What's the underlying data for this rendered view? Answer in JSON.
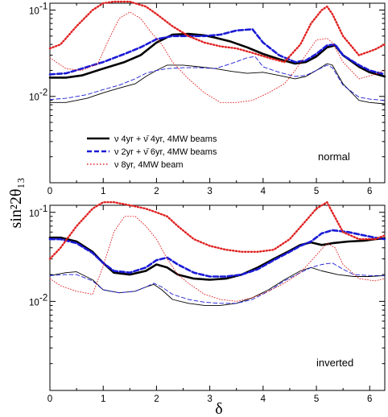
{
  "figure": {
    "ylabel": "sin²2θ₁₃",
    "xlabel": "δ"
  },
  "legend": {
    "entries": [
      {
        "label": "ν 4yr + ν̄ 4yr, 4MW beams"
      },
      {
        "label": "ν 2yr + ν̄ 6yr, 4MW beams"
      },
      {
        "label": "ν 8yr, 4MW beam"
      }
    ]
  },
  "styles": {
    "A": {
      "color": "#000000",
      "dash": "none"
    },
    "B": {
      "color": "#1a1ad6",
      "dash": "dashed"
    },
    "C": {
      "color": "#e02020",
      "dash": "dotted"
    }
  },
  "chart_data": [
    {
      "type": "line",
      "annotation": "normal",
      "xlim": [
        0,
        6.2832
      ],
      "ylim": [
        0.001,
        0.12
      ],
      "yscale": "log",
      "x_ticks": [
        0,
        1,
        2,
        3,
        4,
        5,
        6
      ],
      "y_tick_labels": [
        {
          "base": "10",
          "exp": "-1",
          "value": 0.1
        },
        {
          "base": "10",
          "exp": "-2",
          "value": 0.01
        }
      ],
      "series": [
        {
          "style": "A",
          "weight": "thick",
          "x": [
            0,
            0.3,
            0.6,
            1.0,
            1.4,
            1.7,
            2.0,
            2.3,
            2.6,
            2.9,
            3.1,
            3.4,
            3.7,
            4.0,
            4.3,
            4.6,
            4.8,
            5.0,
            5.2,
            5.35,
            5.5,
            5.8,
            6.0,
            6.28
          ],
          "y": [
            0.0165,
            0.0165,
            0.0175,
            0.021,
            0.025,
            0.03,
            0.042,
            0.052,
            0.053,
            0.051,
            0.048,
            0.043,
            0.037,
            0.031,
            0.027,
            0.024,
            0.025,
            0.029,
            0.037,
            0.039,
            0.03,
            0.022,
            0.019,
            0.017
          ]
        },
        {
          "style": "B",
          "weight": "thick",
          "x": [
            0,
            0.3,
            0.6,
            1.0,
            1.4,
            1.7,
            2.0,
            2.3,
            2.6,
            2.9,
            3.2,
            3.5,
            3.8,
            4.0,
            4.3,
            4.6,
            4.8,
            5.0,
            5.2,
            5.35,
            5.5,
            5.8,
            6.0,
            6.28
          ],
          "y": [
            0.018,
            0.0185,
            0.021,
            0.025,
            0.031,
            0.037,
            0.046,
            0.05,
            0.05,
            0.05,
            0.052,
            0.058,
            0.06,
            0.042,
            0.03,
            0.025,
            0.026,
            0.031,
            0.039,
            0.04,
            0.03,
            0.023,
            0.02,
            0.018
          ]
        },
        {
          "style": "C",
          "weight": "thick",
          "x": [
            0,
            0.2,
            0.5,
            0.8,
            1.0,
            1.2,
            1.5,
            1.8,
            2.0,
            2.3,
            2.6,
            2.9,
            3.2,
            3.5,
            3.8,
            4.1,
            4.4,
            4.7,
            4.9,
            5.1,
            5.2,
            5.3,
            5.5,
            5.8,
            6.1,
            6.28
          ],
          "y": [
            0.036,
            0.04,
            0.065,
            0.1,
            0.12,
            0.125,
            0.125,
            0.11,
            0.09,
            0.065,
            0.05,
            0.042,
            0.038,
            0.036,
            0.032,
            0.028,
            0.025,
            0.04,
            0.07,
            0.1,
            0.11,
            0.09,
            0.05,
            0.03,
            0.035,
            0.04
          ]
        },
        {
          "style": "A",
          "weight": "thin",
          "x": [
            0,
            0.3,
            0.7,
            1.0,
            1.3,
            1.6,
            1.8,
            2.0,
            2.2,
            2.5,
            2.8,
            3.1,
            3.4,
            3.7,
            4.0,
            4.3,
            4.6,
            4.8,
            5.0,
            5.2,
            5.3,
            5.5,
            5.8,
            6.0,
            6.28
          ],
          "y": [
            0.0085,
            0.0085,
            0.0095,
            0.011,
            0.0125,
            0.014,
            0.017,
            0.02,
            0.023,
            0.023,
            0.022,
            0.021,
            0.0195,
            0.0185,
            0.019,
            0.0175,
            0.016,
            0.017,
            0.02,
            0.024,
            0.023,
            0.014,
            0.009,
            0.0085,
            0.0082
          ]
        },
        {
          "style": "B",
          "weight": "thin",
          "x": [
            0,
            0.3,
            0.7,
            1.0,
            1.3,
            1.6,
            1.8,
            2.0,
            2.2,
            2.5,
            2.8,
            3.1,
            3.4,
            3.7,
            3.85,
            4.0,
            4.3,
            4.6,
            4.8,
            5.0,
            5.2,
            5.3,
            5.5,
            5.8,
            6.0,
            6.28
          ],
          "y": [
            0.0092,
            0.0095,
            0.0105,
            0.012,
            0.0135,
            0.016,
            0.0185,
            0.02,
            0.021,
            0.0215,
            0.0215,
            0.021,
            0.024,
            0.028,
            0.029,
            0.022,
            0.019,
            0.017,
            0.0175,
            0.02,
            0.023,
            0.0215,
            0.0135,
            0.0098,
            0.0093,
            0.009
          ]
        },
        {
          "style": "C",
          "weight": "thin",
          "x": [
            0,
            0.3,
            0.6,
            0.9,
            1.1,
            1.3,
            1.5,
            1.7,
            1.9,
            2.1,
            2.3,
            2.6,
            2.9,
            3.2,
            3.5,
            3.8,
            4.1,
            4.4,
            4.6,
            4.8,
            5.0,
            5.2,
            5.3,
            5.5,
            5.8,
            6.1,
            6.28
          ],
          "y": [
            0.028,
            0.021,
            0.02,
            0.024,
            0.045,
            0.08,
            0.095,
            0.08,
            0.055,
            0.04,
            0.025,
            0.016,
            0.011,
            0.0085,
            0.0085,
            0.009,
            0.011,
            0.014,
            0.02,
            0.03,
            0.045,
            0.047,
            0.042,
            0.025,
            0.016,
            0.018,
            0.02
          ]
        }
      ]
    },
    {
      "type": "line",
      "annotation": "inverted",
      "xlim": [
        0,
        6.2832
      ],
      "ylim": [
        0.001,
        0.12
      ],
      "yscale": "log",
      "x_ticks": [
        0,
        1,
        2,
        3,
        4,
        5,
        6
      ],
      "y_tick_labels": [
        {
          "base": "10",
          "exp": "-1",
          "value": 0.1
        },
        {
          "base": "10",
          "exp": "-2",
          "value": 0.01
        }
      ],
      "series": [
        {
          "style": "A",
          "weight": "thick",
          "x": [
            0,
            0.2,
            0.5,
            0.8,
            1.0,
            1.2,
            1.5,
            1.8,
            2.0,
            2.2,
            2.4,
            2.7,
            3.0,
            3.3,
            3.6,
            3.9,
            4.2,
            4.5,
            4.7,
            4.9,
            5.1,
            5.3,
            5.6,
            5.9,
            6.1,
            6.28
          ],
          "y": [
            0.052,
            0.052,
            0.047,
            0.036,
            0.027,
            0.021,
            0.02,
            0.022,
            0.026,
            0.024,
            0.02,
            0.018,
            0.0175,
            0.018,
            0.02,
            0.024,
            0.03,
            0.037,
            0.043,
            0.046,
            0.043,
            0.045,
            0.047,
            0.048,
            0.05,
            0.051
          ]
        },
        {
          "style": "B",
          "weight": "thick",
          "x": [
            0,
            0.2,
            0.5,
            0.8,
            1.0,
            1.2,
            1.5,
            1.8,
            2.0,
            2.2,
            2.4,
            2.7,
            3.0,
            3.3,
            3.6,
            3.9,
            4.2,
            4.5,
            4.7,
            4.9,
            5.1,
            5.3,
            5.6,
            5.9,
            6.1,
            6.28
          ],
          "y": [
            0.05,
            0.05,
            0.045,
            0.035,
            0.027,
            0.022,
            0.021,
            0.024,
            0.029,
            0.031,
            0.026,
            0.021,
            0.019,
            0.019,
            0.02,
            0.023,
            0.029,
            0.036,
            0.042,
            0.047,
            0.058,
            0.063,
            0.06,
            0.055,
            0.052,
            0.05
          ]
        },
        {
          "style": "C",
          "weight": "thick",
          "x": [
            0,
            0.2,
            0.5,
            0.8,
            1.0,
            1.2,
            1.5,
            1.8,
            2.0,
            2.2,
            2.4,
            2.7,
            3.0,
            3.3,
            3.6,
            3.9,
            4.2,
            4.5,
            4.8,
            5.0,
            5.2,
            5.3,
            5.5,
            5.8,
            6.1,
            6.28
          ],
          "y": [
            0.03,
            0.04,
            0.07,
            0.11,
            0.13,
            0.13,
            0.12,
            0.11,
            0.1,
            0.09,
            0.07,
            0.05,
            0.042,
            0.038,
            0.036,
            0.036,
            0.038,
            0.05,
            0.08,
            0.11,
            0.13,
            0.1,
            0.06,
            0.05,
            0.05,
            0.055
          ]
        },
        {
          "style": "A",
          "weight": "thin",
          "x": [
            0,
            0.3,
            0.5,
            0.8,
            1.0,
            1.3,
            1.6,
            1.8,
            1.95,
            2.1,
            2.3,
            2.6,
            2.9,
            3.2,
            3.5,
            3.8,
            4.1,
            4.4,
            4.7,
            4.9,
            5.1,
            5.4,
            5.7,
            6.0,
            6.28
          ],
          "y": [
            0.0195,
            0.021,
            0.0215,
            0.0175,
            0.0135,
            0.0125,
            0.013,
            0.0145,
            0.0155,
            0.0135,
            0.0105,
            0.0095,
            0.009,
            0.009,
            0.0095,
            0.011,
            0.0135,
            0.0175,
            0.022,
            0.024,
            0.022,
            0.02,
            0.019,
            0.019,
            0.0195
          ]
        },
        {
          "style": "B",
          "weight": "thin",
          "x": [
            0,
            0.3,
            0.5,
            0.8,
            1.0,
            1.3,
            1.6,
            1.8,
            1.95,
            2.1,
            2.3,
            2.6,
            2.9,
            3.2,
            3.5,
            3.8,
            4.1,
            4.4,
            4.7,
            4.9,
            5.1,
            5.3,
            5.5,
            5.7,
            6.0,
            6.28
          ],
          "y": [
            0.0195,
            0.02,
            0.02,
            0.017,
            0.0135,
            0.0125,
            0.013,
            0.0145,
            0.016,
            0.0145,
            0.012,
            0.0105,
            0.0098,
            0.0095,
            0.0095,
            0.0105,
            0.013,
            0.017,
            0.021,
            0.024,
            0.026,
            0.027,
            0.023,
            0.02,
            0.0195,
            0.0195
          ]
        },
        {
          "style": "C",
          "weight": "thin",
          "x": [
            0,
            0.2,
            0.5,
            0.8,
            1.0,
            1.2,
            1.4,
            1.6,
            1.8,
            2.0,
            2.2,
            2.4,
            2.6,
            2.9,
            3.2,
            3.5,
            3.8,
            4.1,
            4.4,
            4.7,
            5.0,
            5.2,
            5.35,
            5.5,
            5.8,
            6.1,
            6.28
          ],
          "y": [
            0.018,
            0.015,
            0.013,
            0.012,
            0.025,
            0.06,
            0.09,
            0.09,
            0.07,
            0.05,
            0.03,
            0.02,
            0.016,
            0.012,
            0.0105,
            0.01,
            0.011,
            0.013,
            0.016,
            0.021,
            0.033,
            0.045,
            0.04,
            0.026,
            0.018,
            0.017,
            0.018
          ]
        }
      ]
    }
  ]
}
